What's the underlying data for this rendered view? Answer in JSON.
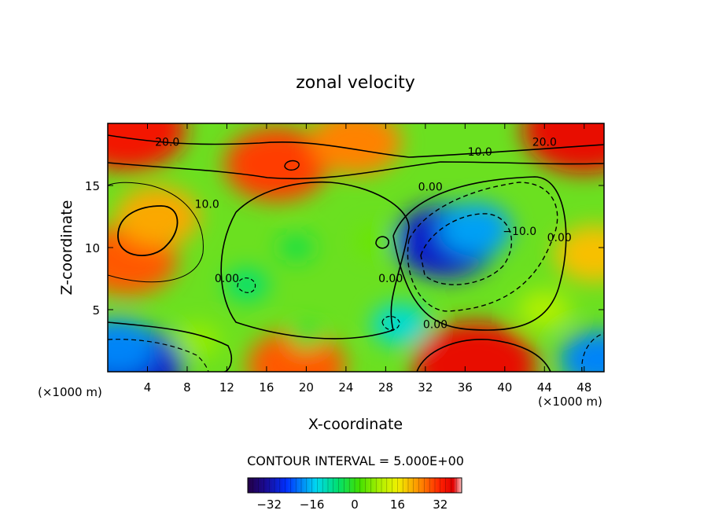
{
  "chart_data": {
    "type": "heatmap",
    "title": "zonal velocity",
    "xlabel": "X-coordinate",
    "ylabel": "Z-coordinate",
    "x_unit_left": "(×1000 m)",
    "x_unit_right": "(×1000 m)",
    "xlim": [
      0,
      50
    ],
    "ylim": [
      0,
      20
    ],
    "x_ticks": [
      4,
      8,
      12,
      16,
      20,
      24,
      28,
      32,
      36,
      40,
      44,
      48
    ],
    "y_ticks": [
      5,
      10,
      15
    ],
    "contour_interval_text": "CONTOUR INTERVAL = 5.000E+00",
    "colorbar": {
      "range": [
        -40,
        40
      ],
      "ticks": [
        -32,
        -16,
        0,
        16,
        32
      ],
      "tick_labels": [
        "−32",
        "−16",
        "0",
        "16",
        "32"
      ]
    },
    "contour_labels": [
      {
        "text": "20.0",
        "x": 6,
        "z": 18.2
      },
      {
        "text": "20.0",
        "x": 44,
        "z": 18.2
      },
      {
        "text": "10.0",
        "x": 37.5,
        "z": 17.4
      },
      {
        "text": "10.0",
        "x": 10,
        "z": 13.2
      },
      {
        "text": "0.00",
        "x": 32.5,
        "z": 14.6
      },
      {
        "text": "0.00",
        "x": 12,
        "z": 7.2
      },
      {
        "text": "0.00",
        "x": 28.5,
        "z": 7.2
      },
      {
        "text": "0.00",
        "x": 33,
        "z": 3.5
      },
      {
        "text": "−10.0",
        "x": 41.5,
        "z": 11.0
      },
      {
        "text": "0.00",
        "x": 45.5,
        "z": 10.5
      }
    ],
    "field_features": [
      {
        "x": 34,
        "z": 10.5,
        "value": -30
      },
      {
        "x": 37,
        "z": 11.5,
        "value": -18
      },
      {
        "x": 2.5,
        "z": 0.6,
        "value": -30
      },
      {
        "x": 1,
        "z": 2,
        "value": -20
      },
      {
        "x": 49.5,
        "z": 1,
        "value": -20
      },
      {
        "x": 29.5,
        "z": 3.8,
        "value": -12
      },
      {
        "x": 14,
        "z": 7,
        "value": -6
      },
      {
        "x": 2,
        "z": 9,
        "value": 28
      },
      {
        "x": 5,
        "z": 12.5,
        "value": 22
      },
      {
        "x": 49,
        "z": 9.5,
        "value": 20
      },
      {
        "x": 37,
        "z": 0.5,
        "value": 38
      },
      {
        "x": 19,
        "z": 0.5,
        "value": 28
      },
      {
        "x": 48,
        "z": 19.5,
        "value": 38
      },
      {
        "x": 2,
        "z": 19.5,
        "value": 35
      },
      {
        "x": 17,
        "z": 16.7,
        "value": 30
      },
      {
        "x": 25,
        "z": 18.5,
        "value": 25
      },
      {
        "x": 20,
        "z": 2.8,
        "value": -2
      },
      {
        "x": 19,
        "z": 10,
        "value": -3
      },
      {
        "x": 27,
        "z": 10.5,
        "value": 5
      },
      {
        "x": 9,
        "z": 2.5,
        "value": 8
      },
      {
        "x": 44,
        "z": 5,
        "value": 10
      }
    ]
  }
}
